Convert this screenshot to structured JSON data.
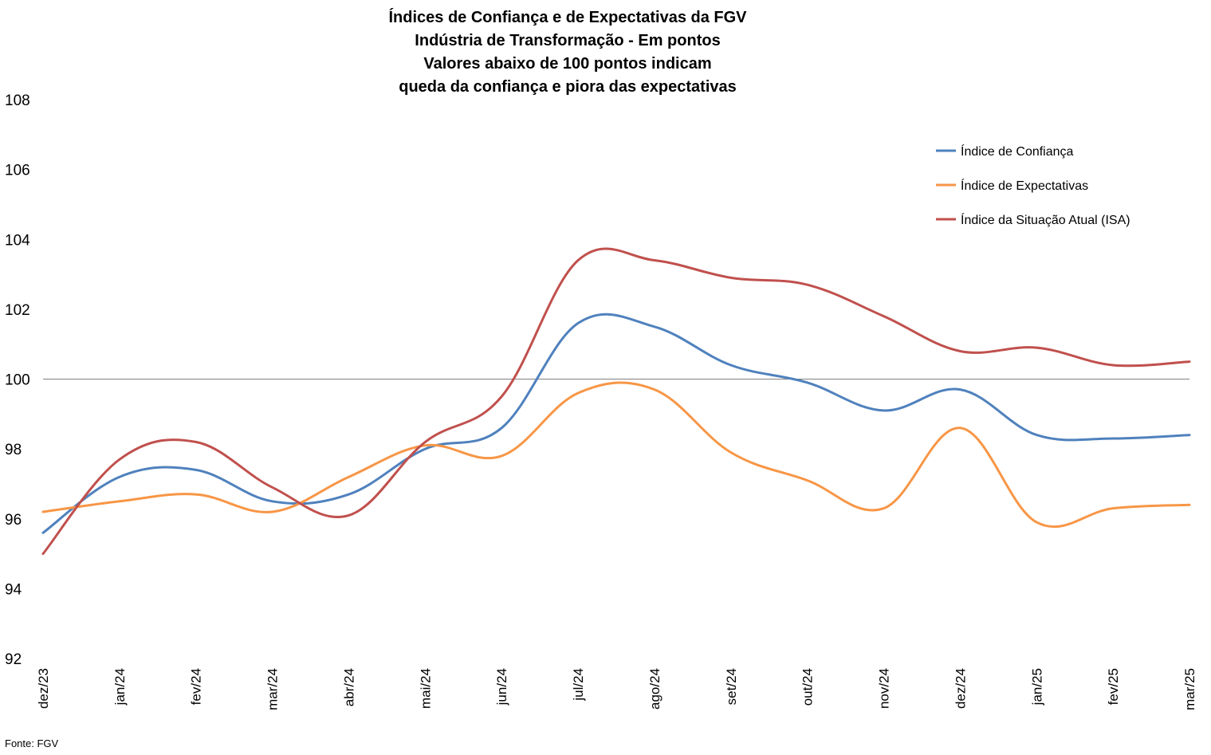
{
  "chart_data": {
    "type": "line",
    "title": [
      "Índices de Confiança e de Expectativas da FGV",
      "Indústria de Transformação - Em pontos",
      "Valores abaixo de 100 pontos indicam",
      "queda da confiança e piora das expectativas"
    ],
    "categories": [
      "dez/23",
      "jan/24",
      "fev/24",
      "mar/24",
      "abr/24",
      "mai/24",
      "jun/24",
      "jul/24",
      "ago/24",
      "set/24",
      "out/24",
      "nov/24",
      "dez/24",
      "jan/25",
      "fev/25",
      "mar/25"
    ],
    "series": [
      {
        "name": "Índice de Confiança",
        "color": "#4F81BD",
        "values": [
          95.6,
          97.2,
          97.4,
          96.5,
          96.7,
          98.0,
          98.6,
          101.6,
          101.5,
          100.4,
          99.9,
          99.1,
          99.7,
          98.4,
          98.3,
          98.4
        ]
      },
      {
        "name": "Índice de Expectativas",
        "color": "#F79646",
        "values": [
          96.2,
          96.5,
          96.7,
          96.2,
          97.2,
          98.1,
          97.8,
          99.6,
          99.7,
          97.9,
          97.1,
          96.3,
          98.6,
          95.9,
          96.3,
          96.4
        ]
      },
      {
        "name": "Índice da Situação Atual (ISA)",
        "color": "#C0504D",
        "values": [
          95.0,
          97.7,
          98.2,
          96.9,
          96.1,
          98.2,
          99.5,
          103.4,
          103.4,
          102.9,
          102.7,
          101.8,
          100.8,
          100.9,
          100.4,
          100.5
        ]
      }
    ],
    "ylim": [
      92,
      108
    ],
    "yticks": [
      92,
      94,
      96,
      98,
      100,
      102,
      104,
      106,
      108
    ],
    "reference_line": 100,
    "grid": false,
    "legend_position": "top-right"
  },
  "source_note": "Fonte: FGV"
}
